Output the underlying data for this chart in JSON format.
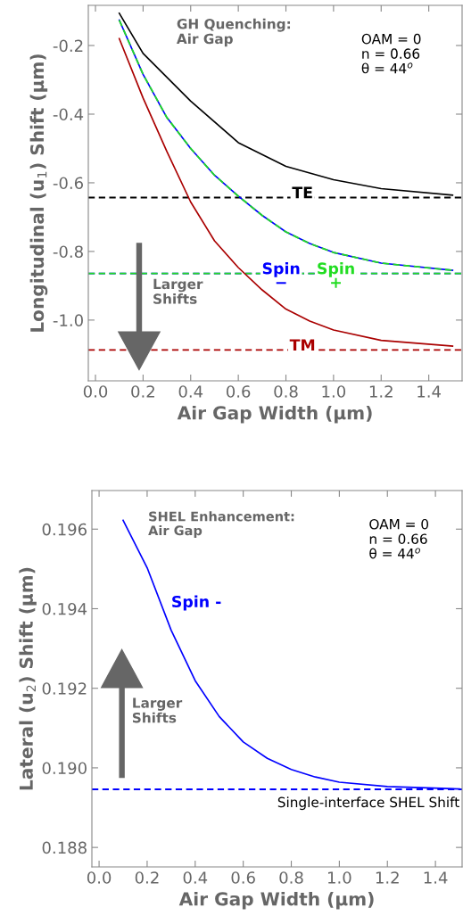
{
  "chart_data": [
    {
      "type": "line",
      "xlabel": "Air Gap Width (μm)",
      "ylabel": "Longitudinal (u$_{1}$) Shift (μm)",
      "xlim": [
        -0.03,
        1.54
      ],
      "ylim": [
        -1.177,
        -0.083
      ],
      "xticks": [
        {
          "value": 0,
          "label": "0.0"
        },
        {
          "value": 0.2,
          "label": "0.2"
        },
        {
          "value": 0.4,
          "label": "0.4"
        },
        {
          "value": 0.6,
          "label": "0.6"
        },
        {
          "value": 0.8,
          "label": "0.8"
        },
        {
          "value": 1.0,
          "label": "1.0"
        },
        {
          "value": 1.2,
          "label": "1.2"
        },
        {
          "value": 1.4,
          "label": "1.4"
        }
      ],
      "yticks": [
        {
          "value": -0.2,
          "label": "-0.2"
        },
        {
          "value": -0.4,
          "label": "-0.4"
        },
        {
          "value": -0.6,
          "label": "-0.6"
        },
        {
          "value": -0.8,
          "label": "-0.8"
        },
        {
          "value": -1.0,
          "label": "-1.0"
        }
      ],
      "x": [
        0.1,
        0.2,
        0.3,
        0.4,
        0.5,
        0.6,
        0.7,
        0.8,
        0.9,
        1.0,
        1.2,
        1.5
      ],
      "series": [
        {
          "color": "#000000",
          "x": [
            0.1,
            0.2,
            0.4,
            0.6,
            0.8,
            1.0,
            1.2,
            1.5
          ],
          "values": [
            -0.106,
            -0.223,
            -0.362,
            -0.483,
            -0.552,
            -0.591,
            -0.617,
            -0.636
          ]
        },
        {
          "color": "#0000ff",
          "values": [
            -0.126,
            -0.284,
            -0.41,
            -0.5,
            -0.578,
            -0.639,
            -0.695,
            -0.743,
            -0.777,
            -0.803,
            -0.834,
            -0.855
          ]
        },
        {
          "color": "#22dd22",
          "line_style": "dashed",
          "values": [
            -0.126,
            -0.284,
            -0.41,
            -0.5,
            -0.578,
            -0.639,
            -0.695,
            -0.743,
            -0.777,
            -0.803,
            -0.834,
            -0.855
          ]
        },
        {
          "color": "#aa0000",
          "values": [
            -0.18,
            -0.353,
            -0.509,
            -0.656,
            -0.769,
            -0.847,
            -0.912,
            -0.968,
            -1.003,
            -1.029,
            -1.059,
            -1.076
          ]
        }
      ],
      "ref_lines": [
        {
          "axis": "y",
          "value": -0.643,
          "label": "TE",
          "color": "#000000",
          "line_style": "dashed"
        },
        {
          "axis": "y",
          "value": -0.864,
          "label": "Spin\n−",
          "color": "#0000ff",
          "line_style": "dashed"
        },
        {
          "axis": "y",
          "value": -0.864,
          "label": "Spin\n+",
          "color": "#22dd22",
          "line_style": "dashed"
        },
        {
          "axis": "y",
          "value": -1.087,
          "label": "TM",
          "color": "#aa0000",
          "line_style": "dashed"
        }
      ],
      "annotations": [
        "GH Quenching:\nAir Gap",
        "OAM = 0\nn = 0.66\nθ = 44$^{o}$",
        "Larger\nShifts"
      ],
      "grid": false,
      "legend": false
    },
    {
      "type": "line",
      "xlabel": "Air Gap Width (μm)",
      "ylabel": "Lateral (u$_{2}$) Shift (μm)",
      "xlim": [
        -0.03,
        1.511
      ],
      "ylim": [
        0.18751,
        0.19697
      ],
      "xticks": [
        {
          "value": 0,
          "label": "0.0"
        },
        {
          "value": 0.2,
          "label": "0.2"
        },
        {
          "value": 0.4,
          "label": "0.4"
        },
        {
          "value": 0.6,
          "label": "0.6"
        },
        {
          "value": 0.8,
          "label": "0.8"
        },
        {
          "value": 1.0,
          "label": "1.0"
        },
        {
          "value": 1.2,
          "label": "1.2"
        },
        {
          "value": 1.4,
          "label": "1.4"
        }
      ],
      "yticks": [
        {
          "value": 0.188,
          "label": "0.188"
        },
        {
          "value": 0.19,
          "label": "0.190"
        },
        {
          "value": 0.192,
          "label": "0.192"
        },
        {
          "value": 0.194,
          "label": "0.194"
        },
        {
          "value": 0.196,
          "label": "0.196"
        }
      ],
      "x": [
        0.1,
        0.2,
        0.3,
        0.4,
        0.5,
        0.6,
        0.7,
        0.8,
        0.9,
        1.0,
        1.2,
        1.5
      ],
      "series": [
        {
          "name": "Spin -",
          "color": "#0000ff",
          "values": [
            0.19622,
            0.19503,
            0.19346,
            0.19219,
            0.19129,
            0.19065,
            0.19024,
            0.18996,
            0.18977,
            0.18964,
            0.18953,
            0.18947
          ]
        }
      ],
      "ref_lines": [
        {
          "axis": "y",
          "value": 0.18946,
          "label": "Single-interface SHEL Shift",
          "color": "#0000ff",
          "line_style": "dashed"
        }
      ],
      "annotations": [
        "SHEL Enhancement:\nAir Gap",
        "OAM = 0\nn = 0.66\nθ = 44$^{o}$",
        "Larger\nShifts"
      ],
      "grid": false,
      "legend": false
    }
  ]
}
